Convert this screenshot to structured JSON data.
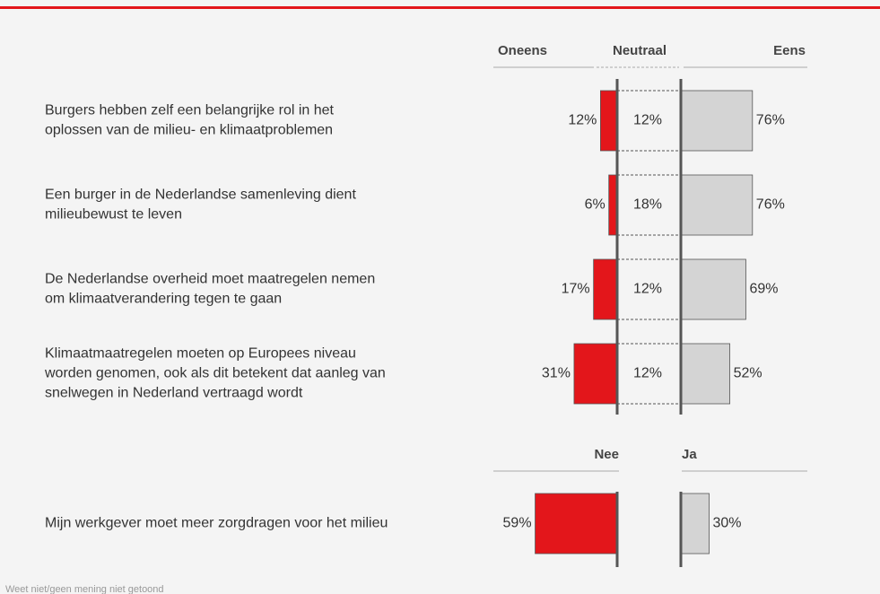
{
  "chart_data": [
    {
      "type": "diverging_bar",
      "categories": [
        [
          "Burgers hebben zelf een belangrijke rol in het",
          "oplossen van de milieu- en klimaatproblemen"
        ],
        [
          "Een burger in de Nederlandse samenleving dient",
          "milieubewust te leven"
        ],
        [
          "De Nederlandse overheid moet maatregelen nemen",
          "om klimaatverandering tegen te gaan"
        ],
        [
          "Klimaatmaatregelen moeten op Europees niveau",
          "worden genomen, ook als dit betekent dat aanleg van",
          "snelwegen in Nederland vertraagd wordt"
        ]
      ],
      "series": [
        {
          "name": "Oneens",
          "color": "#e3161b",
          "values": [
            12,
            6,
            17,
            31
          ],
          "value_labels": [
            "12%",
            "6%",
            "17%",
            "31%"
          ]
        },
        {
          "name": "Neutraal",
          "values": [
            12,
            18,
            12,
            12
          ],
          "value_labels": [
            "12%",
            "18%",
            "12%",
            "12%"
          ]
        },
        {
          "name": "Eens",
          "color": "#d4d4d4",
          "values": [
            76,
            76,
            69,
            52
          ],
          "value_labels": [
            "76%",
            "76%",
            "69%",
            "52%"
          ]
        }
      ]
    },
    {
      "type": "diverging_bar",
      "categories": [
        [
          "Mijn werkgever moet meer zorgdragen voor het milieu"
        ]
      ],
      "series": [
        {
          "name": "Nee",
          "color": "#e3161b",
          "values": [
            59
          ],
          "value_labels": [
            "59%"
          ]
        },
        {
          "name": "Ja",
          "color": "#d4d4d4",
          "values": [
            30
          ],
          "value_labels": [
            "30%"
          ]
        }
      ]
    }
  ],
  "footnote": "Weet niet/geen mening niet getoond"
}
